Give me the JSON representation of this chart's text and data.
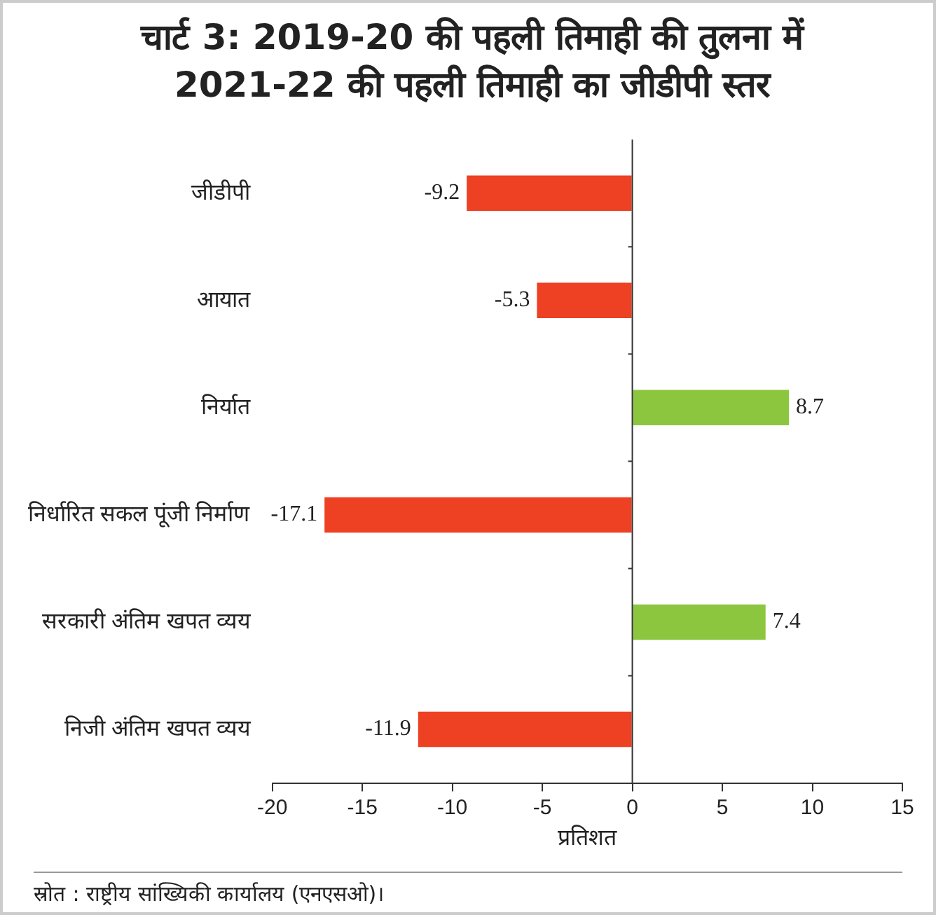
{
  "chart_data": {
    "type": "bar",
    "orientation": "horizontal",
    "title": "चार्ट 3: 2019-20 की पहली तिमाही की तुलना में 2021-22 की पहली तिमाही का जीडीपी स्तर",
    "categories": [
      "जीडीपी",
      "आयात",
      "निर्यात",
      "निर्धारित सकल पूंजी निर्माण",
      "सरकारी अंतिम खपत व्यय",
      "निजी अंतिम खपत व्यय"
    ],
    "values": [
      -9.2,
      -5.3,
      8.7,
      -17.1,
      7.4,
      -11.9
    ],
    "colors": [
      "#ee4023",
      "#ee4023",
      "#8cc63f",
      "#ee4023",
      "#8cc63f",
      "#ee4023"
    ],
    "xlim": [
      -20,
      15
    ],
    "xticks": [
      -20,
      -15,
      -10,
      -5,
      0,
      5,
      10,
      15
    ],
    "xlabel": "प्रतिशत",
    "legend": false,
    "data_labels": true,
    "annotations": [
      "स्रोत : राष्ट्रीय सांख्यिकी कार्यालय (एनएसओ)।"
    ]
  }
}
